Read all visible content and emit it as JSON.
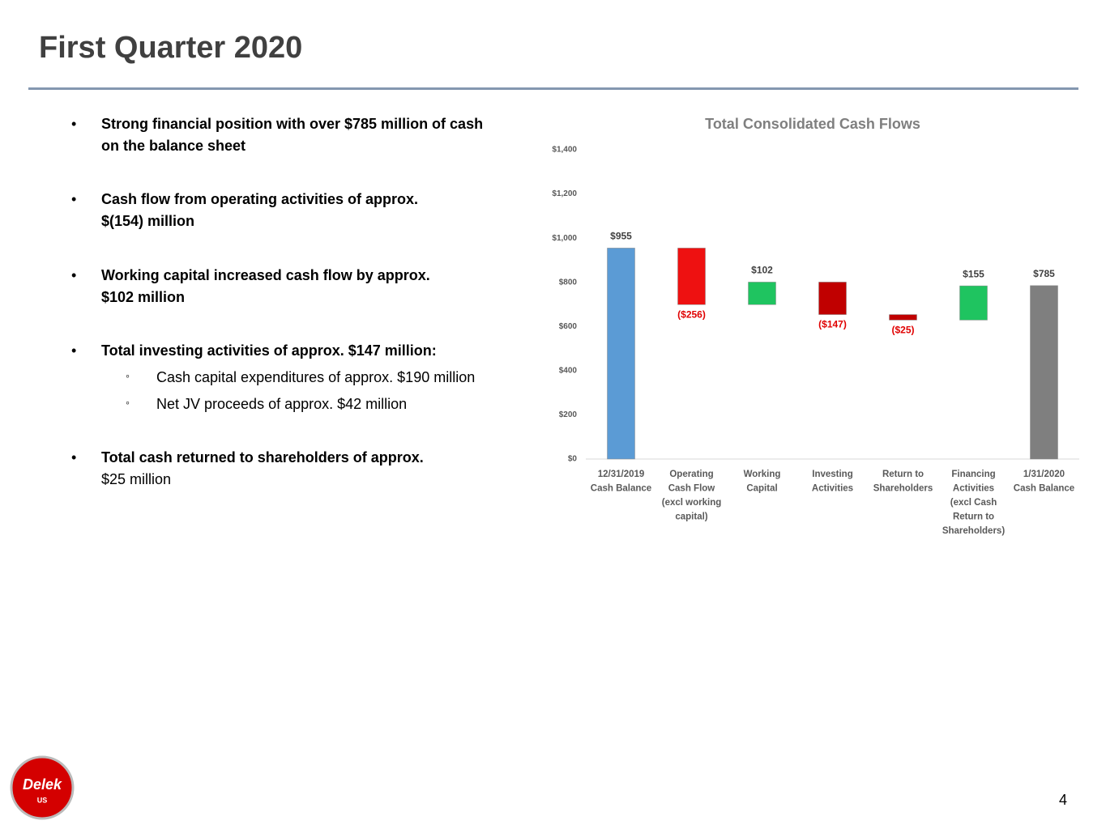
{
  "title": "First Quarter 2020",
  "bullets": [
    {
      "lines": [
        "Strong financial position with over $785 million of cash",
        "on the balance sheet"
      ]
    },
    {
      "lines": [
        "Cash flow from operating activities of approx.",
        "$(154) million"
      ]
    },
    {
      "lines": [
        "Working capital increased cash flow by approx.",
        "$102 million"
      ]
    },
    {
      "lines": [
        "Total investing activities of approx. $147 million:"
      ],
      "sub": [
        "Cash capital expenditures of approx. $190 million",
        "Net JV proceeds of approx. $42 million"
      ]
    },
    {
      "lines": [
        "Total cash returned to shareholders of approx.",
        "$25 million"
      ]
    }
  ],
  "chart_data": {
    "type": "waterfall",
    "title": "Total Consolidated Cash Flows",
    "categories": [
      "12/31/2019\nCash Balance",
      "Operating\nCash Flow\n(excl working\ncapital)",
      "Working\nCapital",
      "Investing\nActivities",
      "Return to\nShareholders",
      "Financing\nActivities\n(excl Cash\nReturn to\nShareholders)",
      "1/31/2020\nCash Balance"
    ],
    "values": [
      955,
      -256,
      102,
      -147,
      -25,
      155,
      785
    ],
    "value_labels": [
      "$955",
      "($256)",
      "$102",
      "($147)",
      "($25)",
      "$155",
      "$785"
    ],
    "is_total": [
      true,
      false,
      false,
      false,
      false,
      false,
      true
    ],
    "colors": [
      "#5b9bd5",
      "#ee1111",
      "#1fc460",
      "#c00000",
      "#c00000",
      "#1fc460",
      "#7f7f7f"
    ],
    "ylim": [
      0,
      1400
    ],
    "yticks": [
      {
        "value": 0,
        "label": "$0"
      },
      {
        "value": 200,
        "label": "$200"
      },
      {
        "value": 400,
        "label": "$400"
      },
      {
        "value": 600,
        "label": "$600"
      },
      {
        "value": 800,
        "label": "$800"
      },
      {
        "value": 1000,
        "label": "$1,000"
      },
      {
        "value": 1200,
        "label": "$1,200"
      },
      {
        "value": 1400,
        "label": "$1,400"
      }
    ]
  },
  "logo": {
    "name": "Delek",
    "sub": "US"
  },
  "page_number": "4"
}
